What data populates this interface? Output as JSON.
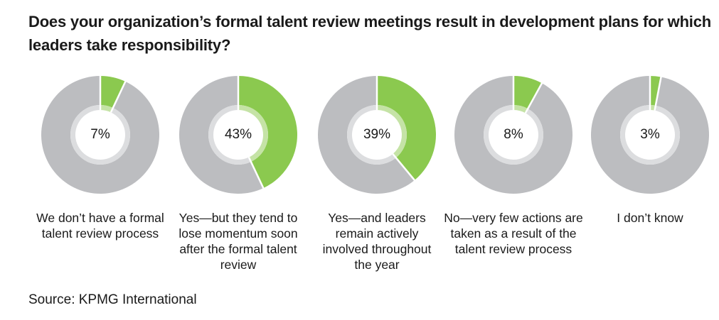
{
  "title": "Does your organization’s formal talent review meetings result in development plans for which leaders take responsibility?",
  "source": "Source: KPMG International",
  "colors": {
    "highlight": "#8bc94f",
    "highlight_inner": "#c5e3a6",
    "rest": "#bcbdc0",
    "rest_inner": "#dcdddf"
  },
  "chart_data": {
    "type": "pie",
    "variant": "donut",
    "title": "Does your organization’s formal talent review meetings result in development plans for which leaders take responsibility?",
    "items": [
      {
        "label": "We don’t have a formal talent review process",
        "value": 7,
        "display": "7%"
      },
      {
        "label": "Yes—but they tend to lose momentum soon after the formal talent review",
        "value": 43,
        "display": "43%"
      },
      {
        "label": "Yes—and leaders remain actively involved throughout the year",
        "value": 39,
        "display": "39%"
      },
      {
        "label": "No—very few actions are taken as a result of the talent review process",
        "value": 8,
        "display": "8%"
      },
      {
        "label": "I don’t know",
        "value": 3,
        "display": "3%"
      }
    ]
  }
}
